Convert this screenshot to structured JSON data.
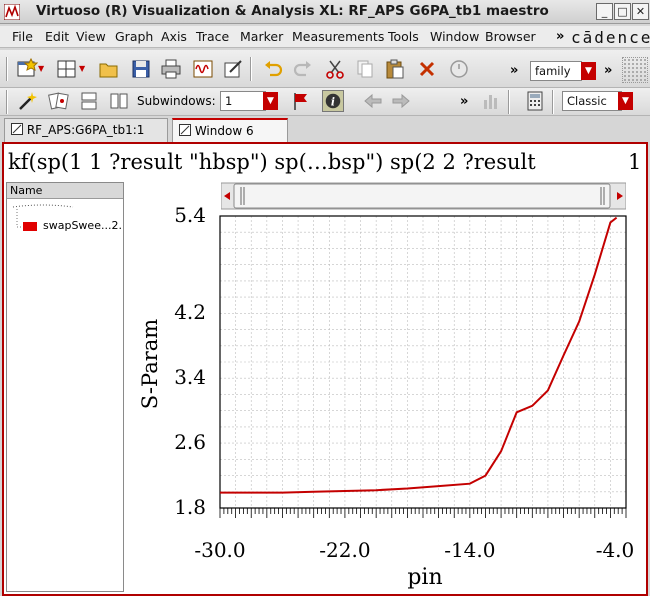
{
  "window": {
    "title": "Virtuoso (R) Visualization & Analysis XL: RF_APS G6PA_tb1 maestro",
    "minimize": "_",
    "maximize": "□",
    "close": "✕"
  },
  "menu": {
    "items": [
      "File",
      "Edit",
      "View",
      "Graph",
      "Axis",
      "Trace",
      "Marker",
      "Measurements",
      "Tools",
      "Window",
      "Browser"
    ],
    "more": "»",
    "logo": "cādence"
  },
  "toolbar1": {
    "more1": "»",
    "family_combo": "family",
    "more2": "»"
  },
  "toolbar2": {
    "subwindows_label": "Subwindows:",
    "subwindows_value": "1",
    "more": "»",
    "style_combo": "Classic"
  },
  "tabs": [
    {
      "label": "RF_APS:G6PA_tb1:1"
    },
    {
      "label": "Window 6"
    }
  ],
  "plot": {
    "title": "kf(sp(1 1 ?result \"hbsp\") sp(…bsp\") sp(2 2 ?result",
    "number": "1"
  },
  "legend": {
    "header": "Name",
    "trace_label": "swapSwee...2.",
    "trace_color": "#e00000"
  },
  "chart_data": {
    "type": "line",
    "xlabel": "pin",
    "ylabel": "S-Param",
    "xlim": [
      -30.0,
      -4.0
    ],
    "ylim": [
      1.8,
      5.4
    ],
    "xticks": [
      "-30.0",
      "-22.0",
      "-14.0",
      "-4.0"
    ],
    "yticks": [
      "5.4",
      "4.2",
      "3.4",
      "2.6",
      "1.8"
    ],
    "ytick_values": [
      5.4,
      4.2,
      3.4,
      2.6,
      1.8
    ],
    "xtick_values": [
      -30.0,
      -22.0,
      -14.0,
      -4.0
    ],
    "grid": true,
    "series": [
      {
        "color": "#c40000",
        "x": [
          -30,
          -28,
          -26,
          -24,
          -22,
          -20,
          -18,
          -16,
          -14,
          -13,
          -12,
          -11,
          -10,
          -9,
          -8,
          -7,
          -6,
          -5,
          -4.6
        ],
        "y": [
          1.99,
          1.99,
          1.99,
          2.0,
          2.01,
          2.02,
          2.04,
          2.07,
          2.1,
          2.2,
          2.5,
          2.98,
          3.06,
          3.25,
          3.68,
          4.1,
          4.68,
          5.32,
          5.38
        ]
      }
    ]
  }
}
